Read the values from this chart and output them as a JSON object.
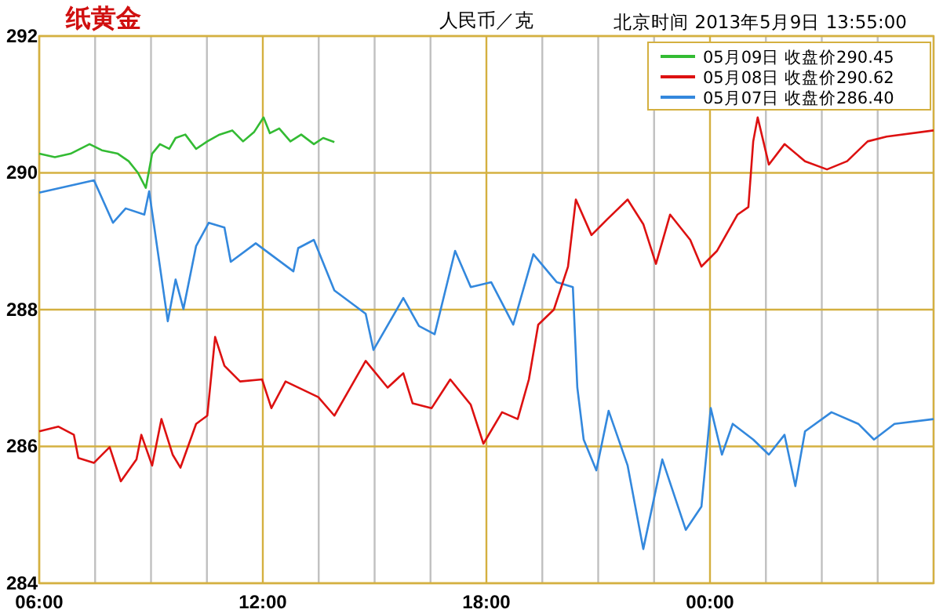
{
  "chart_data": {
    "type": "line",
    "title": "纸黄金",
    "subtitle": "人民币／克",
    "annotations": [
      "北京时间 2013年5月9日 13:55:00"
    ],
    "xlim": [
      6,
      30
    ],
    "xticks": [
      {
        "value": 6,
        "label": "06:00"
      },
      {
        "value": 7.5,
        "label": null
      },
      {
        "value": 9,
        "label": null
      },
      {
        "value": 10.5,
        "label": null
      },
      {
        "value": 12,
        "label": "12:00"
      },
      {
        "value": 13.5,
        "label": null
      },
      {
        "value": 15,
        "label": null
      },
      {
        "value": 16.5,
        "label": null
      },
      {
        "value": 18,
        "label": "18:00"
      },
      {
        "value": 19.5,
        "label": null
      },
      {
        "value": 21,
        "label": null
      },
      {
        "value": 22.5,
        "label": null
      },
      {
        "value": 24,
        "label": "00:00"
      },
      {
        "value": 25.5,
        "label": null
      },
      {
        "value": 27,
        "label": null
      },
      {
        "value": 28.5,
        "label": null
      },
      {
        "value": 30,
        "label": null
      }
    ],
    "ylim": [
      284,
      292
    ],
    "yticks": [
      284,
      286,
      288,
      290,
      292
    ],
    "grid": true,
    "legend": "top right",
    "line_style": "solid",
    "marker": "none",
    "series": [
      {
        "name": "05月09日 收盘价290.45",
        "color": "#33bb33",
        "x": [
          6,
          6.42,
          6.84,
          7.35,
          7.68,
          8.11,
          8.4,
          8.65,
          8.86,
          9.03,
          9.24,
          9.49,
          9.66,
          9.92,
          10.21,
          10.51,
          10.84,
          11.18,
          11.47,
          11.77,
          12.02,
          12.19,
          12.44,
          12.74,
          13.03,
          13.37,
          13.62,
          13.92
        ],
        "values": [
          290.28,
          290.23,
          290.28,
          290.42,
          290.33,
          290.28,
          290.17,
          290.0,
          289.78,
          290.28,
          290.42,
          290.35,
          290.51,
          290.56,
          290.35,
          290.46,
          290.56,
          290.62,
          290.46,
          290.6,
          290.81,
          290.58,
          290.65,
          290.46,
          290.56,
          290.42,
          290.51,
          290.45
        ]
      },
      {
        "name": "05月08日 收盘价290.62",
        "color": "#dd1111",
        "x": [
          6,
          6.51,
          6.93,
          7.05,
          7.47,
          7.89,
          8.19,
          8.61,
          8.74,
          9.03,
          9.28,
          9.58,
          9.79,
          10.21,
          10.51,
          10.72,
          10.97,
          11.39,
          11.98,
          12.23,
          12.61,
          13.49,
          13.92,
          14.76,
          15.35,
          15.77,
          16.02,
          16.53,
          17.03,
          17.58,
          17.92,
          18.42,
          18.84,
          19.14,
          19.39,
          19.81,
          20.19,
          20.4,
          20.82,
          21.24,
          21.79,
          22.21,
          22.55,
          22.93,
          23.47,
          23.77,
          24.19,
          24.74,
          25.03,
          25.16,
          25.28,
          25.58,
          26,
          26.55,
          27.14,
          27.68,
          28.23,
          28.74,
          30
        ],
        "values": [
          286.22,
          286.29,
          286.17,
          285.83,
          285.76,
          285.99,
          285.49,
          285.81,
          286.17,
          285.72,
          286.4,
          285.88,
          285.69,
          286.33,
          286.45,
          287.6,
          287.18,
          286.95,
          286.98,
          286.56,
          286.95,
          286.72,
          286.45,
          287.25,
          286.86,
          287.07,
          286.63,
          286.56,
          286.98,
          286.61,
          286.04,
          286.5,
          286.4,
          286.98,
          287.78,
          288.0,
          288.63,
          289.61,
          289.09,
          289.32,
          289.61,
          289.25,
          288.67,
          289.39,
          289.02,
          288.63,
          288.86,
          289.39,
          289.5,
          290.46,
          290.81,
          290.12,
          290.42,
          290.17,
          290.05,
          290.17,
          290.46,
          290.53,
          290.62
        ]
      },
      {
        "name": "05月07日 收盘价286.40",
        "color": "#3388dd",
        "x": [
          6,
          7.47,
          7.98,
          8.32,
          8.82,
          8.95,
          9.16,
          9.45,
          9.66,
          9.87,
          10.21,
          10.55,
          10.97,
          11.14,
          11.81,
          12.82,
          12.95,
          13.37,
          13.49,
          13.92,
          14.76,
          14.97,
          15.77,
          16.19,
          16.61,
          17.16,
          17.58,
          18.13,
          18.72,
          19.26,
          19.89,
          20.32,
          20.44,
          20.61,
          20.95,
          21.28,
          21.79,
          22.21,
          22.72,
          23.35,
          23.77,
          24.02,
          24.32,
          24.61,
          25.16,
          25.58,
          26,
          26.29,
          26.55,
          27.26,
          27.98,
          28.4,
          28.95,
          30
        ],
        "values": [
          289.71,
          289.89,
          289.27,
          289.48,
          289.39,
          289.73,
          288.93,
          287.83,
          288.44,
          288.01,
          288.93,
          289.27,
          289.2,
          288.7,
          288.97,
          288.56,
          288.9,
          289.02,
          288.86,
          288.28,
          287.94,
          287.41,
          288.17,
          287.76,
          287.64,
          288.86,
          288.33,
          288.4,
          287.78,
          288.81,
          288.4,
          288.33,
          286.86,
          286.1,
          285.65,
          286.52,
          285.72,
          284.5,
          285.81,
          284.78,
          285.12,
          286.56,
          285.88,
          286.33,
          286.1,
          285.88,
          286.17,
          285.42,
          286.22,
          286.5,
          286.33,
          286.1,
          286.33,
          286.4
        ]
      }
    ]
  }
}
